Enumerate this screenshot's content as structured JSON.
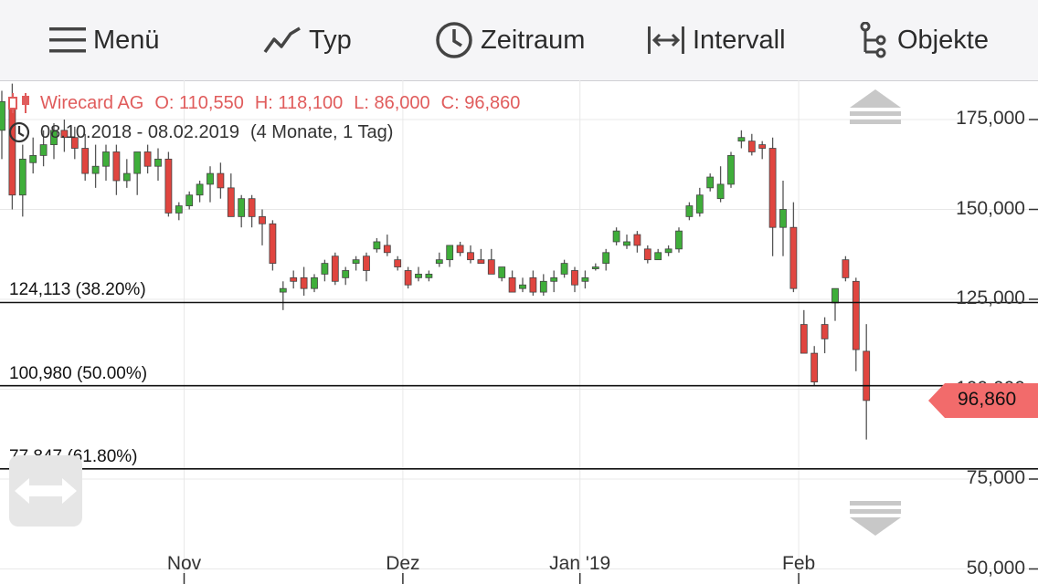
{
  "toolbar": {
    "menu_label": "Menü",
    "type_label": "Typ",
    "period_label": "Zeitraum",
    "interval_label": "Intervall",
    "objects_label": "Objekte"
  },
  "info": {
    "name": "Wirecard AG",
    "open": "O: 110,550",
    "high": "H: 118,100",
    "low": "L: 86,000",
    "close": "C: 96,860",
    "range": "08.10.2018 - 08.02.2019",
    "duration": "(4 Monate, 1 Tag)"
  },
  "fib": [
    {
      "label": "124,113 (38.20%)",
      "value": 124113
    },
    {
      "label": "100,980 (50.00%)",
      "value": 100980
    },
    {
      "label": "77,847 (61.80%)",
      "value": 77847
    }
  ],
  "price_badge": {
    "value": "96,860",
    "numeric": 96860
  },
  "colors": {
    "up": "#3fae3a",
    "down": "#e0453f",
    "badge": "#f26b6b",
    "info": "#e05c5c"
  },
  "chart_data": {
    "type": "candlestick",
    "y_ticks": [
      {
        "label": "175,000",
        "value": 175000
      },
      {
        "label": "150,000",
        "value": 150000
      },
      {
        "label": "125,000",
        "value": 125000
      },
      {
        "label": "100,000",
        "value": 100000
      },
      {
        "label": "75,000",
        "value": 75000
      },
      {
        "label": "50,000",
        "value": 50000
      }
    ],
    "x_ticks": [
      {
        "label": "Nov",
        "index": 17.5
      },
      {
        "label": "Dez",
        "index": 38.5
      },
      {
        "label": "Jan '19",
        "index": 55.5
      },
      {
        "label": "Feb",
        "index": 76.5
      }
    ],
    "ylim": [
      50000,
      183000
    ],
    "candles": [
      [
        172000,
        183000,
        164000,
        180000
      ],
      [
        180000,
        185000,
        150000,
        154000
      ],
      [
        154000,
        168000,
        148000,
        164000
      ],
      [
        163000,
        170000,
        160000,
        165000
      ],
      [
        165000,
        172000,
        162000,
        168000
      ],
      [
        168000,
        174000,
        164000,
        172000
      ],
      [
        172000,
        175000,
        166000,
        170000
      ],
      [
        170000,
        173000,
        164000,
        167000
      ],
      [
        167000,
        171000,
        158000,
        160000
      ],
      [
        160000,
        168000,
        156000,
        162000
      ],
      [
        162000,
        168000,
        158000,
        166000
      ],
      [
        166000,
        168000,
        154000,
        158000
      ],
      [
        158000,
        164000,
        156000,
        160000
      ],
      [
        160000,
        166000,
        154000,
        166000
      ],
      [
        166000,
        168000,
        160000,
        162000
      ],
      [
        162000,
        167000,
        158000,
        164000
      ],
      [
        164000,
        166000,
        148000,
        149000
      ],
      [
        149000,
        152000,
        147000,
        151000
      ],
      [
        151000,
        155000,
        150000,
        154000
      ],
      [
        154000,
        158000,
        152000,
        157000
      ],
      [
        157000,
        162000,
        152000,
        160000
      ],
      [
        160000,
        163000,
        153000,
        156000
      ],
      [
        156000,
        160000,
        148000,
        148000
      ],
      [
        148000,
        154000,
        145000,
        153000
      ],
      [
        153000,
        154000,
        145000,
        148000
      ],
      [
        148000,
        150000,
        140000,
        146000
      ],
      [
        146000,
        147000,
        133000,
        135000
      ],
      [
        127000,
        130000,
        122000,
        128000
      ],
      [
        131000,
        133000,
        128000,
        130000
      ],
      [
        131000,
        134000,
        126000,
        128000
      ],
      [
        128000,
        132000,
        127000,
        131000
      ],
      [
        132000,
        136000,
        130000,
        135000
      ],
      [
        137000,
        138000,
        129000,
        130000
      ],
      [
        131000,
        134000,
        129000,
        133000
      ],
      [
        135000,
        137000,
        133000,
        136000
      ],
      [
        137000,
        138000,
        130000,
        133000
      ],
      [
        139000,
        142000,
        138000,
        141000
      ],
      [
        140000,
        143000,
        137000,
        138000
      ],
      [
        136000,
        137000,
        133000,
        134000
      ],
      [
        133000,
        134000,
        128000,
        129000
      ],
      [
        131000,
        134000,
        130000,
        132000
      ],
      [
        131000,
        133000,
        130000,
        132000
      ],
      [
        135000,
        138000,
        134000,
        136000
      ],
      [
        136000,
        140000,
        134000,
        140000
      ],
      [
        140000,
        141000,
        137000,
        138000
      ],
      [
        138000,
        140000,
        135000,
        136000
      ],
      [
        136000,
        139000,
        135000,
        135000
      ],
      [
        136000,
        139000,
        132000,
        132000
      ],
      [
        131000,
        134000,
        130000,
        134000
      ],
      [
        131000,
        133000,
        127000,
        127000
      ],
      [
        128000,
        131000,
        127000,
        129000
      ],
      [
        131000,
        133000,
        126000,
        127000
      ],
      [
        127000,
        132000,
        126000,
        130000
      ],
      [
        130000,
        133000,
        127000,
        131000
      ],
      [
        132000,
        136000,
        131000,
        135000
      ],
      [
        133000,
        134000,
        127000,
        129000
      ],
      [
        130000,
        133000,
        128000,
        131000
      ],
      [
        134000,
        135000,
        133000,
        134000
      ],
      [
        135000,
        139000,
        133000,
        138000
      ],
      [
        141000,
        145000,
        140000,
        144000
      ],
      [
        140000,
        143000,
        139000,
        141000
      ],
      [
        143000,
        144000,
        138000,
        140000
      ],
      [
        139000,
        140000,
        135000,
        136000
      ],
      [
        136000,
        139000,
        136000,
        138000
      ],
      [
        138000,
        140000,
        137000,
        139000
      ],
      [
        139000,
        145000,
        138000,
        144000
      ],
      [
        148000,
        152000,
        147000,
        151000
      ],
      [
        149000,
        156000,
        148000,
        154000
      ],
      [
        156000,
        160000,
        155000,
        159000
      ],
      [
        153000,
        162000,
        152000,
        157000
      ],
      [
        157000,
        166000,
        156000,
        165000
      ],
      [
        169000,
        172000,
        167000,
        170000
      ],
      [
        169000,
        171000,
        165000,
        166000
      ],
      [
        168000,
        169000,
        164000,
        167000
      ],
      [
        167000,
        170000,
        137000,
        145000
      ],
      [
        145000,
        158000,
        137000,
        150000
      ],
      [
        145000,
        152000,
        127000,
        128000
      ],
      [
        118000,
        122000,
        111000,
        110000
      ],
      [
        110000,
        112000,
        101000,
        102000
      ],
      [
        118000,
        120000,
        110000,
        114000
      ],
      [
        124000,
        127000,
        119000,
        128000
      ],
      [
        136000,
        137000,
        130000,
        131000
      ],
      [
        130000,
        131000,
        105000,
        111000
      ],
      [
        110550,
        118100,
        86000,
        96860
      ]
    ],
    "title": ""
  }
}
